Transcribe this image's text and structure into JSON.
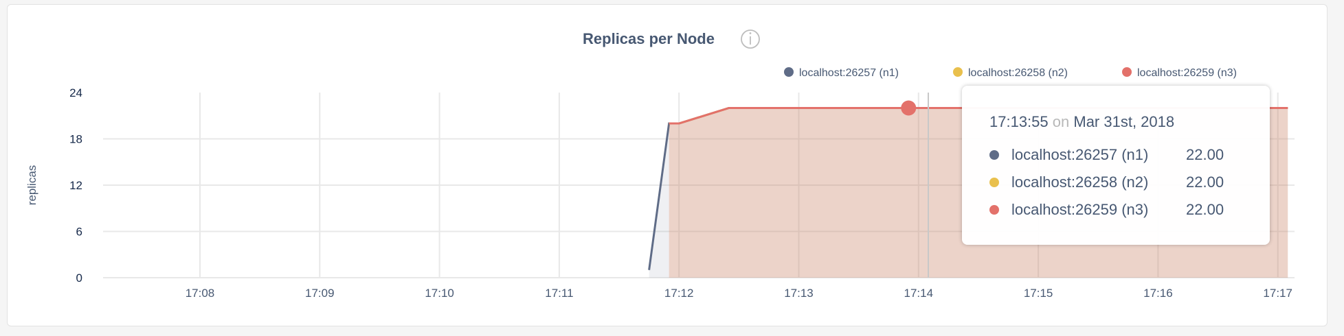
{
  "chart_data": {
    "type": "area",
    "title": "Replicas per Node",
    "ylabel": "replicas",
    "xlabel": "",
    "ylim": [
      0,
      24
    ],
    "yticks": [
      "0",
      "6",
      "12",
      "18",
      "24"
    ],
    "xticks": [
      "17:08",
      "17:09",
      "17:10",
      "17:11",
      "17:12",
      "17:13",
      "17:14",
      "17:15",
      "17:16",
      "17:17"
    ],
    "grid": true,
    "legend_position": "top-right",
    "series": [
      {
        "name": "localhost:26257 (n1)",
        "color": "#5f6c87",
        "points": [
          [
            "17:11:45",
            1
          ],
          [
            "17:11:55",
            20
          ],
          [
            "17:12:00",
            20
          ],
          [
            "17:12:25",
            22
          ],
          [
            "17:17:05",
            22
          ]
        ]
      },
      {
        "name": "localhost:26258 (n2)",
        "color": "#e9c04d",
        "points": [
          [
            "17:11:55",
            20
          ],
          [
            "17:12:00",
            20
          ],
          [
            "17:12:25",
            22
          ],
          [
            "17:17:05",
            22
          ]
        ]
      },
      {
        "name": "localhost:26259 (n3)",
        "color": "#e3716a",
        "points": [
          [
            "17:11:55",
            20
          ],
          [
            "17:12:00",
            20
          ],
          [
            "17:12:25",
            22
          ],
          [
            "17:17:05",
            22
          ]
        ]
      }
    ],
    "hover": {
      "time": "17:13:55",
      "value": 22
    }
  },
  "info_icon": "info-circle-icon",
  "tooltip": {
    "time": "17:13:55",
    "on": "on",
    "date": "Mar 31st, 2018",
    "rows": [
      {
        "name": "localhost:26257 (n1)",
        "value": "22.00",
        "color": "#5f6c87"
      },
      {
        "name": "localhost:26258 (n2)",
        "value": "22.00",
        "color": "#e9c04d"
      },
      {
        "name": "localhost:26259 (n3)",
        "value": "22.00",
        "color": "#e3716a"
      }
    ]
  }
}
